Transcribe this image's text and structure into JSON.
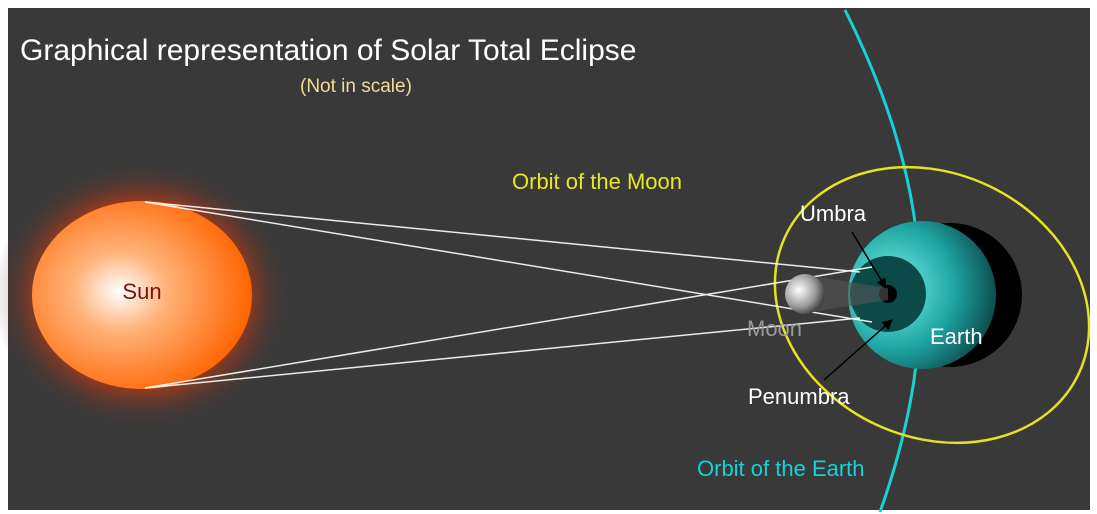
{
  "title": "Graphical representation of Solar Total Eclipse",
  "subtitle": "(Not in scale)",
  "labels": {
    "sun": "Sun",
    "moon": "Moon",
    "earth": "Earth",
    "umbra": "Umbra",
    "penumbra": "Penumbra",
    "moon_orbit": "Orbit of the Moon",
    "earth_orbit": "Orbit of the Earth"
  }
}
